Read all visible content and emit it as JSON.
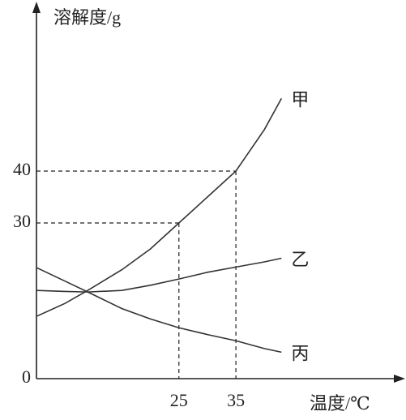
{
  "chart_data": {
    "type": "line",
    "y_label": "溶解度/g",
    "x_label": "温度/℃",
    "x": [
      0,
      5,
      9,
      15,
      20,
      25,
      30,
      35,
      40,
      43
    ],
    "series": [
      {
        "name": "甲",
        "color": "#333333",
        "values": [
          12,
          14.5,
          17,
          21,
          25,
          30,
          35,
          40,
          48,
          54
        ]
      },
      {
        "name": "乙",
        "color": "#333333",
        "values": [
          17,
          16.8,
          16.7,
          17,
          18,
          19.2,
          20.5,
          21.5,
          22.5,
          23.2
        ]
      },
      {
        "name": "丙",
        "color": "#333333",
        "values": [
          21.4,
          18.8,
          16.7,
          13.5,
          11.5,
          9.8,
          8.5,
          7.3,
          5.8,
          5.1
        ]
      }
    ],
    "xlim": [
      0,
      64
    ],
    "ylim": [
      0,
      70
    ],
    "xticks": [
      25,
      35
    ],
    "yticks": [
      0,
      30,
      40
    ],
    "guides": true
  }
}
